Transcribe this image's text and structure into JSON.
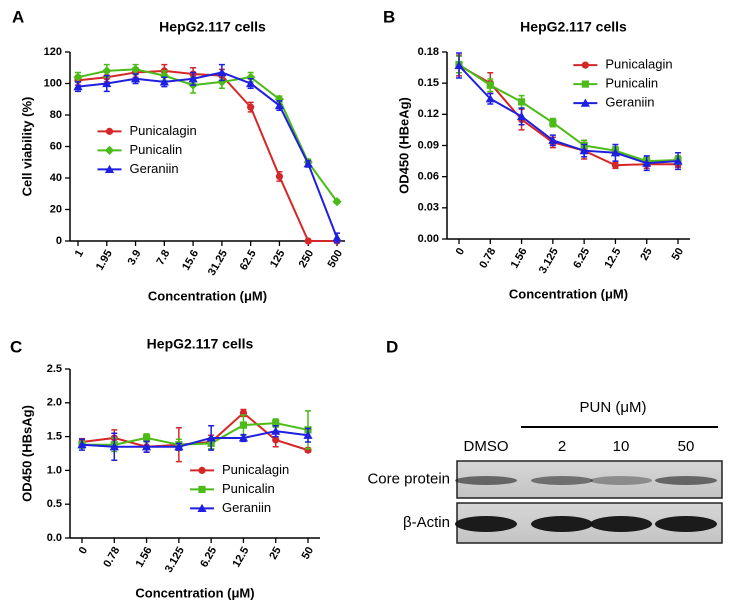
{
  "chart_data": [
    {
      "type": "line",
      "panel": "A",
      "title": "HepG2.117 cells",
      "xlabel": "Concentration (μM)",
      "ylabel": "Cell viability (%)",
      "categories": [
        "1",
        "1.95",
        "3.9",
        "7.8",
        "15.6",
        "31.25",
        "62.5",
        "125",
        "250",
        "500"
      ],
      "ylim": [
        0,
        120
      ],
      "yticks": [
        0,
        20,
        40,
        60,
        80,
        100,
        120
      ],
      "legend": "center-left",
      "series": [
        {
          "name": "Punicalagin",
          "color": "#d62728",
          "marker": "circle",
          "values": [
            102,
            104,
            107,
            108,
            106,
            105,
            85,
            41,
            0,
            0
          ],
          "errors": [
            3,
            3,
            3,
            4,
            4,
            4,
            3,
            3,
            1,
            1
          ]
        },
        {
          "name": "Punicalin",
          "color": "#4cbb17",
          "marker": "diamond",
          "values": [
            104,
            108,
            109,
            105,
            99,
            101,
            104,
            90,
            50,
            25
          ],
          "errors": [
            3,
            4,
            3,
            3,
            5,
            4,
            3,
            2,
            2,
            1
          ]
        },
        {
          "name": "Geraniin",
          "color": "#1f1fe0",
          "marker": "triangle",
          "values": [
            98,
            100,
            103,
            101,
            103,
            107,
            100,
            86,
            49,
            2
          ],
          "errors": [
            3,
            5,
            3,
            3,
            4,
            5,
            3,
            3,
            2,
            3
          ]
        }
      ]
    },
    {
      "type": "line",
      "panel": "B",
      "title": "HepG2.117 cells",
      "xlabel": "Concentration (μM)",
      "ylabel": "OD450 (HBeAg)",
      "categories": [
        "0",
        "0.78",
        "1.56",
        "3.125",
        "6.25",
        "12.5",
        "25",
        "50"
      ],
      "ylim": [
        0,
        0.18
      ],
      "yticks": [
        {
          "value": 0,
          "label": "0.00"
        },
        0.03,
        0.06,
        0.09,
        0.12,
        0.15,
        0.18
      ],
      "legend": "upper-right",
      "series": [
        {
          "name": "Punicalagin",
          "color": "#d62728",
          "marker": "circle",
          "values": [
            0.167,
            0.15,
            0.115,
            0.093,
            0.085,
            0.071,
            0.072,
            0.072
          ],
          "errors": [
            0.01,
            0.01,
            0.01,
            0.005,
            0.008,
            0.003,
            0.004,
            0.003
          ]
        },
        {
          "name": "Punicalin",
          "color": "#4cbb17",
          "marker": "square",
          "values": [
            0.168,
            0.148,
            0.132,
            0.112,
            0.09,
            0.085,
            0.075,
            0.076
          ],
          "errors": [
            0.008,
            0.006,
            0.006,
            0.004,
            0.005,
            0.004,
            0.004,
            0.004
          ]
        },
        {
          "name": "Geraniin",
          "color": "#1f1fe0",
          "marker": "triangle",
          "values": [
            0.167,
            0.135,
            0.118,
            0.095,
            0.085,
            0.083,
            0.073,
            0.075
          ],
          "errors": [
            0.012,
            0.005,
            0.008,
            0.005,
            0.006,
            0.008,
            0.007,
            0.008
          ]
        }
      ]
    },
    {
      "type": "line",
      "panel": "C",
      "title": "HepG2.117 cells",
      "xlabel": "Concentration (μM)",
      "ylabel": "OD450 (HBsAg)",
      "categories": [
        "0",
        "0.78",
        "1.56",
        "3.125",
        "6.25",
        "12.5",
        "25",
        "50"
      ],
      "ylim": [
        0,
        2.5
      ],
      "yticks": [
        {
          "value": 0,
          "label": "0.0"
        },
        0.5,
        {
          "value": 1,
          "label": "1.0"
        },
        1.5,
        {
          "value": 2,
          "label": "2.0"
        },
        2.5
      ],
      "legend": "lower-center",
      "series": [
        {
          "name": "Punicalagin",
          "color": "#d62728",
          "marker": "circle",
          "values": [
            1.42,
            1.48,
            1.35,
            1.38,
            1.42,
            1.85,
            1.45,
            1.3
          ],
          "errors": [
            0.05,
            0.12,
            0.08,
            0.25,
            0.1,
            0.05,
            0.1,
            0.03
          ]
        },
        {
          "name": "Punicalin",
          "color": "#4cbb17",
          "marker": "square",
          "values": [
            1.38,
            1.38,
            1.48,
            1.38,
            1.4,
            1.67,
            1.7,
            1.6
          ],
          "errors": [
            0.05,
            0.1,
            0.06,
            0.08,
            0.08,
            0.15,
            0.06,
            0.28
          ]
        },
        {
          "name": "Geraniin",
          "color": "#1f1fe0",
          "marker": "triangle",
          "values": [
            1.38,
            1.35,
            1.35,
            1.35,
            1.48,
            1.48,
            1.58,
            1.52
          ],
          "errors": [
            0.08,
            0.2,
            0.08,
            0.05,
            0.18,
            0.05,
            0.08,
            0.1
          ]
        }
      ]
    }
  ],
  "blot": {
    "panel": "D",
    "treatment": "PUN  (μM)",
    "lanes": [
      "DMSO",
      "2",
      "10",
      "50"
    ],
    "rows": [
      "Core protein",
      "β-Actin"
    ]
  }
}
